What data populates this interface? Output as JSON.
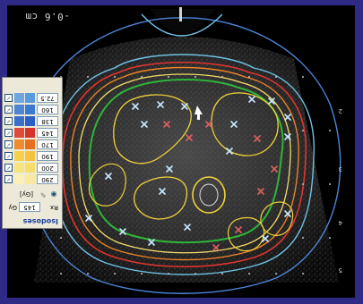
{
  "readout": {
    "depth": "-0.6 cm"
  },
  "legend": {
    "title": "Isodoses",
    "rx_label": "Rx",
    "rx_value": "145",
    "rx_unit": "Gy",
    "tool_unit": "[Gy]",
    "levels": [
      {
        "value": "72.5",
        "color": "#5a9bdc",
        "swatch": "#6fa6e0"
      },
      {
        "value": "160",
        "color": "#3b78d0",
        "swatch": "#4f86d4"
      },
      {
        "value": "138",
        "color": "#2c5fc6",
        "swatch": "#3a6fcb"
      },
      {
        "value": "145",
        "color": "#d6342a",
        "swatch": "#e04a3a"
      },
      {
        "value": "170",
        "color": "#e8701c",
        "swatch": "#f08a2c"
      },
      {
        "value": "190",
        "color": "#f4c23c",
        "swatch": "#f6d04a"
      },
      {
        "value": "200",
        "color": "#f7dd6a",
        "swatch": "#f9e37c"
      },
      {
        "value": "290",
        "color": "#faeaa0",
        "swatch": "#fbf0b6"
      }
    ]
  },
  "colors": {
    "frame": "#2e2a86",
    "contour_blue_outer": "#4c86d8",
    "contour_cyan": "#6ec3e6",
    "contour_red": "#e0342e",
    "contour_orange": "#ee8228",
    "contour_yellow": "#f0d23a",
    "contour_green": "#2fb43a",
    "seed_marker": "#c8e8ff"
  }
}
